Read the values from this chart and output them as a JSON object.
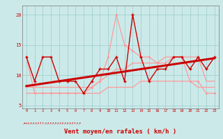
{
  "x": [
    0,
    1,
    2,
    3,
    4,
    5,
    6,
    7,
    8,
    9,
    10,
    11,
    12,
    13,
    14,
    15,
    16,
    17,
    18,
    19,
    20,
    21,
    22,
    23
  ],
  "series_dark_red": [
    13,
    9,
    13,
    13,
    9,
    9,
    9,
    7,
    9,
    11,
    11,
    13,
    9,
    20,
    13,
    9,
    11,
    11,
    13,
    13,
    11,
    13,
    11,
    13
  ],
  "series_light_gust": [
    13,
    7,
    7,
    7,
    7,
    7,
    7,
    7,
    8,
    9,
    13,
    20,
    15,
    14,
    13,
    13,
    12,
    12,
    13,
    13,
    9,
    9,
    7,
    7
  ],
  "series_light_lower": [
    7,
    7,
    7,
    7,
    7,
    7,
    7,
    7,
    7,
    7,
    8,
    8,
    8,
    8,
    9,
    9,
    9,
    9,
    9,
    9,
    9,
    8,
    8,
    8
  ],
  "series_light_upper": [
    8,
    8,
    8,
    8,
    8,
    8,
    8,
    8,
    8,
    9,
    10,
    11,
    11,
    12,
    12,
    12,
    12,
    13,
    13,
    13,
    13,
    13,
    9,
    9
  ],
  "trend_dark": [
    8.2,
    8.4,
    8.6,
    8.8,
    9.0,
    9.2,
    9.4,
    9.6,
    9.8,
    10.0,
    10.2,
    10.4,
    10.6,
    10.8,
    11.0,
    11.2,
    11.4,
    11.6,
    11.8,
    12.0,
    12.2,
    12.4,
    12.6,
    12.8
  ],
  "xlabel": "Vent moyen/en rafales ( km/h )",
  "ylim": [
    4.5,
    21.5
  ],
  "xlim": [
    -0.5,
    23.5
  ],
  "bg_color": "#cce9e9",
  "grid_color": "#99cccc",
  "dark_red": "#cc0000",
  "light_red": "#ff9999",
  "yticks": [
    5,
    10,
    15,
    20
  ],
  "xticks": [
    0,
    1,
    2,
    3,
    4,
    5,
    6,
    7,
    8,
    9,
    10,
    11,
    12,
    13,
    14,
    15,
    16,
    17,
    18,
    19,
    20,
    21,
    22,
    23
  ],
  "arrow_chars": [
    "↗",
    "→",
    "↗",
    "↗",
    "↗",
    "↗",
    "↗",
    "↑",
    "↑",
    "↗",
    "↗",
    "↗",
    "↗",
    "↗",
    "↗",
    "↗",
    "↗",
    "↗",
    "↗",
    "↗",
    "↗",
    "↑",
    "↗",
    "↗"
  ]
}
